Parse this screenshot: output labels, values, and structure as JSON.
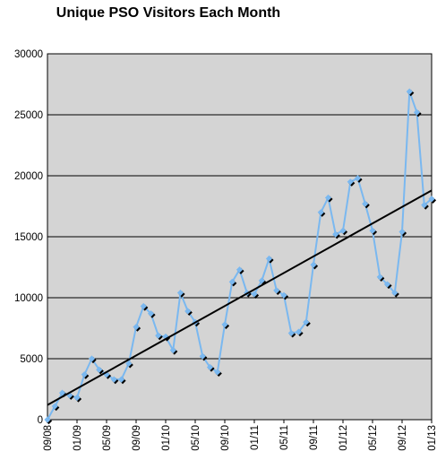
{
  "chart_data": {
    "type": "line",
    "title": "Unique PSO Visitors Each Month",
    "xlabel": "",
    "ylabel": "",
    "ylim": [
      0,
      30000
    ],
    "yticks": [
      0,
      5000,
      10000,
      15000,
      20000,
      25000,
      30000
    ],
    "x_tick_labels": [
      "09/08",
      "01/09",
      "05/09",
      "09/09",
      "01/10",
      "05/10",
      "09/10",
      "01/11",
      "05/11",
      "09/11",
      "01/12",
      "05/12",
      "09/12",
      "01/13"
    ],
    "grid": "horizontal",
    "background": "#d4d4d4",
    "series": [
      {
        "color": "#7ab8f0",
        "marker_color": "#7ab8f0",
        "values": [
          0,
          1100,
          2200,
          2000,
          1800,
          3700,
          5000,
          4100,
          3700,
          3300,
          3300,
          4600,
          7600,
          9300,
          8700,
          6900,
          6800,
          5700,
          10400,
          8900,
          8000,
          5200,
          4300,
          3900,
          7800,
          11300,
          12300,
          10400,
          10300,
          11400,
          13200,
          10600,
          10200,
          7100,
          7200,
          8000,
          12700,
          17000,
          18200,
          15200,
          15500,
          19500,
          19800,
          17700,
          15500,
          11700,
          11100,
          10400,
          15400,
          26900,
          25200,
          17600,
          18100
        ]
      }
    ],
    "trendline": {
      "color": "#000000",
      "start": 1200,
      "end": 18800
    }
  }
}
